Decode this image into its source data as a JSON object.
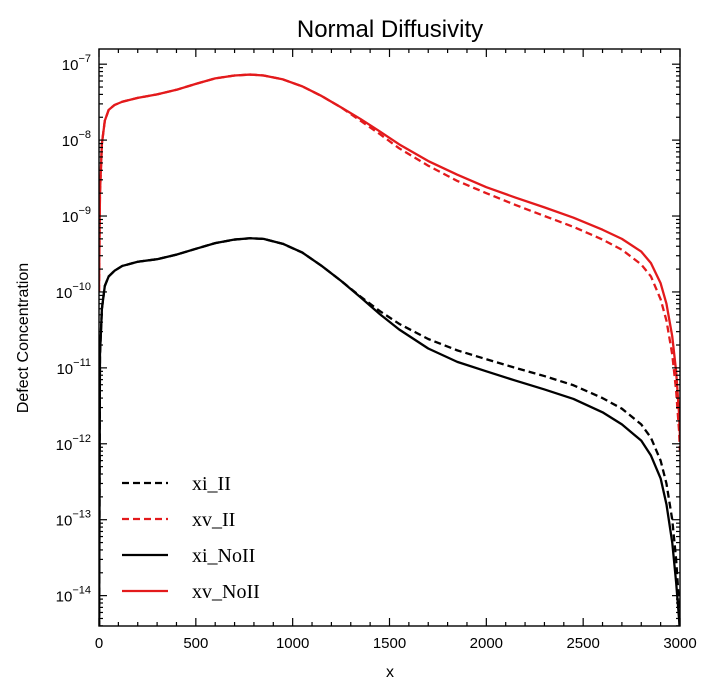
{
  "chart_data": {
    "type": "line",
    "title": "Normal Diffusivity",
    "xlabel": "x",
    "ylabel": "Defect Concentration",
    "xlim": [
      0,
      3000
    ],
    "ylim_log10": [
      -14.4,
      -6.8
    ],
    "y_scale": "log",
    "x_ticks": [
      0,
      500,
      1000,
      1500,
      2000,
      2500,
      3000
    ],
    "x_tick_labels": [
      "0",
      "500",
      "1000",
      "1500",
      "2000",
      "2500",
      "3000"
    ],
    "y_ticks_exp": [
      -7,
      -8,
      -9,
      -10,
      -11,
      -12,
      -13,
      -14
    ],
    "y_tick_labels": [
      {
        "base": "10",
        "exp": "−7"
      },
      {
        "base": "10",
        "exp": "−8"
      },
      {
        "base": "10",
        "exp": "−9"
      },
      {
        "base": "10",
        "exp": "−10"
      },
      {
        "base": "10",
        "exp": "−11"
      },
      {
        "base": "10",
        "exp": "−12"
      },
      {
        "base": "10",
        "exp": "−13"
      },
      {
        "base": "10",
        "exp": "−14"
      }
    ],
    "legend_position": "lower-left",
    "grid": false,
    "series": [
      {
        "name": "xi_II",
        "color": "#000000",
        "dash": "dashed",
        "x": [
          0,
          5,
          15,
          30,
          50,
          80,
          120,
          200,
          300,
          400,
          500,
          600,
          700,
          780,
          850,
          950,
          1050,
          1150,
          1250,
          1350,
          1450,
          1550,
          1700,
          1850,
          2000,
          2150,
          2300,
          2450,
          2600,
          2700,
          2800,
          2850,
          2900,
          2930,
          2960,
          2980,
          2995,
          3000
        ],
        "y": [
          1e-15,
          1.5e-11,
          6e-11,
          1.2e-10,
          1.6e-10,
          1.9e-10,
          2.2e-10,
          2.5e-10,
          2.7e-10,
          3.1e-10,
          3.7e-10,
          4.4e-10,
          4.9e-10,
          5.1e-10,
          5e-10,
          4.3e-10,
          3.3e-10,
          2.2e-10,
          1.4e-10,
          8.7e-11,
          5.6e-11,
          3.8e-11,
          2.4e-11,
          1.7e-11,
          1.3e-11,
          1e-11,
          7.8e-12,
          5.9e-12,
          4e-12,
          2.9e-12,
          1.8e-12,
          1.2e-12,
          6e-13,
          3e-13,
          1e-13,
          3e-14,
          8e-15,
          4e-15
        ]
      },
      {
        "name": "xv_II",
        "color": "#e31a1c",
        "dash": "dashed",
        "x": [
          0,
          5,
          15,
          30,
          50,
          80,
          120,
          200,
          300,
          400,
          500,
          600,
          700,
          780,
          850,
          950,
          1050,
          1150,
          1250,
          1350,
          1450,
          1550,
          1700,
          1850,
          2000,
          2150,
          2300,
          2450,
          2600,
          2700,
          2800,
          2850,
          2900,
          2930,
          2960,
          2980,
          2995,
          3000
        ],
        "y": [
          1e-10,
          2e-09,
          9e-09,
          1.8e-08,
          2.5e-08,
          2.9e-08,
          3.2e-08,
          3.6e-08,
          4e-08,
          4.6e-08,
          5.5e-08,
          6.5e-08,
          7.1e-08,
          7.3e-08,
          7.1e-08,
          6.3e-08,
          5.1e-08,
          3.8e-08,
          2.7e-08,
          1.8e-08,
          1.2e-08,
          7.8e-09,
          4.6e-09,
          2.9e-09,
          2e-09,
          1.4e-09,
          1e-09,
          7.2e-10,
          4.9e-10,
          3.6e-10,
          2.3e-10,
          1.6e-10,
          8e-11,
          4.2e-11,
          1.5e-11,
          5e-12,
          1.5e-12,
          8e-13
        ]
      },
      {
        "name": "xi_NoII",
        "color": "#000000",
        "dash": "solid",
        "x": [
          0,
          5,
          15,
          30,
          50,
          80,
          120,
          200,
          300,
          400,
          500,
          600,
          700,
          780,
          850,
          950,
          1050,
          1150,
          1250,
          1350,
          1450,
          1550,
          1700,
          1850,
          2000,
          2150,
          2300,
          2450,
          2600,
          2700,
          2800,
          2850,
          2900,
          2930,
          2960,
          2980,
          2995,
          3000
        ],
        "y": [
          1e-15,
          1.5e-11,
          6e-11,
          1.2e-10,
          1.6e-10,
          1.9e-10,
          2.2e-10,
          2.5e-10,
          2.7e-10,
          3.1e-10,
          3.7e-10,
          4.4e-10,
          4.9e-10,
          5.1e-10,
          5e-10,
          4.3e-10,
          3.3e-10,
          2.2e-10,
          1.4e-10,
          8.5e-11,
          5.1e-11,
          3.2e-11,
          1.8e-11,
          1.2e-11,
          9e-12,
          6.8e-12,
          5.2e-12,
          3.9e-12,
          2.6e-12,
          1.8e-12,
          1.1e-12,
          7e-13,
          3.5e-13,
          1.6e-13,
          5e-14,
          1.5e-14,
          5e-15,
          3e-15
        ]
      },
      {
        "name": "xv_NoII",
        "color": "#e31a1c",
        "dash": "solid",
        "x": [
          0,
          5,
          15,
          30,
          50,
          80,
          120,
          200,
          300,
          400,
          500,
          600,
          700,
          780,
          850,
          950,
          1050,
          1150,
          1250,
          1350,
          1450,
          1550,
          1700,
          1850,
          2000,
          2150,
          2300,
          2450,
          2600,
          2700,
          2800,
          2850,
          2900,
          2930,
          2960,
          2980,
          2995,
          3000
        ],
        "y": [
          1e-10,
          2e-09,
          9e-09,
          1.8e-08,
          2.5e-08,
          2.9e-08,
          3.2e-08,
          3.6e-08,
          4e-08,
          4.6e-08,
          5.5e-08,
          6.5e-08,
          7.1e-08,
          7.3e-08,
          7.1e-08,
          6.3e-08,
          5.1e-08,
          3.8e-08,
          2.7e-08,
          1.9e-08,
          1.3e-08,
          8.8e-09,
          5.3e-09,
          3.5e-09,
          2.4e-09,
          1.75e-09,
          1.3e-09,
          9.5e-10,
          6.6e-10,
          5e-10,
          3.4e-10,
          2.4e-10,
          1.3e-10,
          7e-11,
          2.6e-11,
          9e-12,
          2.5e-12,
          1.2e-12
        ]
      }
    ]
  }
}
